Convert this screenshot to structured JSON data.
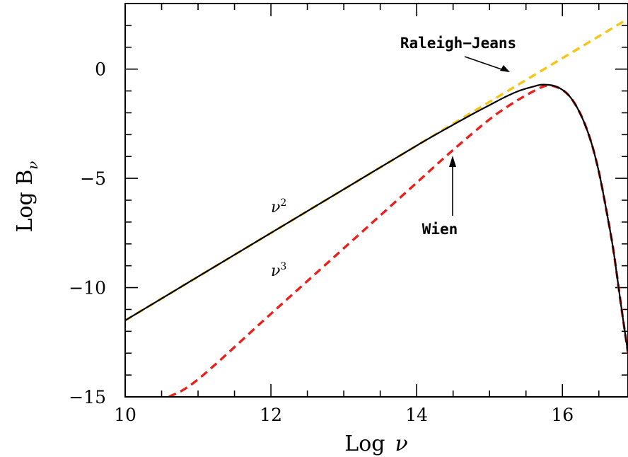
{
  "chart_data": {
    "type": "line",
    "title": "",
    "xlabel_main": "Log",
    "xlabel_symbol": "ν",
    "ylabel_main": "Log B",
    "ylabel_sub": "ν",
    "xlim": [
      10,
      16.9
    ],
    "ylim": [
      -15,
      3
    ],
    "x_ticks": [
      "10",
      "12",
      "14",
      "16"
    ],
    "y_ticks": [
      "−15",
      "−10",
      "−5",
      "0"
    ],
    "grid": false,
    "legend": "none",
    "series": [
      {
        "key": "rj",
        "color": "#f5c518",
        "style": "dashed",
        "x": [
          10,
          11,
          12,
          13,
          14,
          15,
          15.5,
          16,
          16.5,
          16.9
        ],
        "y": [
          -11.5,
          -9.5,
          -7.5,
          -5.5,
          -3.5,
          -1.5,
          -0.5,
          0.5,
          1.5,
          2.3
        ]
      },
      {
        "key": "wien",
        "color": "#e8211d",
        "style": "dashed",
        "x": [
          10.6,
          11,
          12,
          13,
          13.5,
          14,
          14.5,
          15,
          15.3,
          15.5,
          15.7,
          15.8,
          15.9,
          16.0,
          16.1,
          16.2,
          16.3,
          16.4,
          16.5,
          16.6,
          16.7,
          16.8,
          16.9
        ],
        "y": [
          -15,
          -14.2,
          -11.2,
          -8.2,
          -6.7,
          -5.2,
          -3.7,
          -2.3,
          -1.6,
          -1.2,
          -0.85,
          -0.75,
          -0.8,
          -0.95,
          -1.25,
          -1.75,
          -2.45,
          -3.4,
          -4.7,
          -6.4,
          -8.3,
          -10.7,
          -13.0
        ]
      },
      {
        "key": "planck",
        "color": "#000000",
        "style": "solid",
        "x": [
          10,
          11,
          12,
          13,
          14,
          14.5,
          14.8,
          15,
          15.2,
          15.4,
          15.6,
          15.7,
          15.8,
          15.9,
          16.0,
          16.1,
          16.2,
          16.3,
          16.4,
          16.5,
          16.6,
          16.7,
          16.8,
          16.9
        ],
        "y": [
          -11.5,
          -9.5,
          -7.5,
          -5.5,
          -3.5,
          -2.55,
          -2.0,
          -1.65,
          -1.3,
          -1.0,
          -0.8,
          -0.72,
          -0.72,
          -0.78,
          -0.95,
          -1.25,
          -1.75,
          -2.45,
          -3.4,
          -4.7,
          -6.4,
          -8.3,
          -10.7,
          -13.0
        ]
      }
    ],
    "annotations": {
      "raleigh_jeans": "Raleigh−Jeans",
      "wien": "Wien",
      "nu2_base": "ν",
      "nu2_exp": "2",
      "nu3_base": "ν",
      "nu3_exp": "3"
    }
  }
}
